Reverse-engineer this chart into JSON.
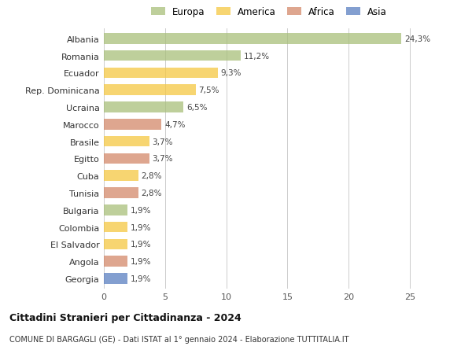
{
  "categories": [
    "Albania",
    "Romania",
    "Ecuador",
    "Rep. Dominicana",
    "Ucraina",
    "Marocco",
    "Brasile",
    "Egitto",
    "Cuba",
    "Tunisia",
    "Bulgaria",
    "Colombia",
    "El Salvador",
    "Angola",
    "Georgia"
  ],
  "values": [
    24.3,
    11.2,
    9.3,
    7.5,
    6.5,
    4.7,
    3.7,
    3.7,
    2.8,
    2.8,
    1.9,
    1.9,
    1.9,
    1.9,
    1.9
  ],
  "labels": [
    "24,3%",
    "11,2%",
    "9,3%",
    "7,5%",
    "6,5%",
    "4,7%",
    "3,7%",
    "3,7%",
    "2,8%",
    "2,8%",
    "1,9%",
    "1,9%",
    "1,9%",
    "1,9%",
    "1,9%"
  ],
  "colors": [
    "#a8c07a",
    "#a8c07a",
    "#f5c842",
    "#f5c842",
    "#a8c07a",
    "#d4896a",
    "#f5c842",
    "#d4896a",
    "#f5c842",
    "#d4896a",
    "#a8c07a",
    "#f5c842",
    "#f5c842",
    "#d4896a",
    "#5a7fc1"
  ],
  "legend_labels": [
    "Europa",
    "America",
    "Africa",
    "Asia"
  ],
  "legend_colors": [
    "#a8c07a",
    "#f5c842",
    "#d4896a",
    "#5a7fc1"
  ],
  "title": "Cittadini Stranieri per Cittadinanza - 2024",
  "subtitle": "COMUNE DI BARGAGLI (GE) - Dati ISTAT al 1° gennaio 2024 - Elaborazione TUTTITALIA.IT",
  "xlim": [
    0,
    27
  ],
  "xticks": [
    0,
    5,
    10,
    15,
    20,
    25
  ],
  "bg_color": "#ffffff",
  "bar_alpha": 0.75,
  "bar_height": 0.62
}
